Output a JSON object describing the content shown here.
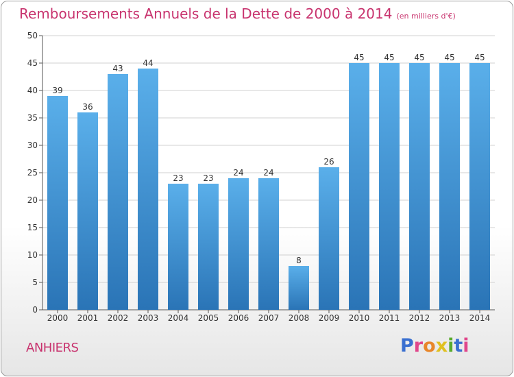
{
  "header": {
    "title": "Remboursements Annuels de la Dette de 2000 à 2014",
    "subtitle": "(en milliers d'€)"
  },
  "footer": {
    "commune": "ANHIERS",
    "logo_text": "Proxiti",
    "logo_colors": [
      "#3a6fd0",
      "#e0468b",
      "#e8862a",
      "#e0c020",
      "#5aab2e",
      "#3a6fd0",
      "#e0468b"
    ]
  },
  "chart_data": {
    "type": "bar",
    "title": "Remboursements Annuels de la Dette de 2000 à 2014",
    "subtitle": "(en milliers d'€)",
    "categories": [
      "2000",
      "2001",
      "2002",
      "2003",
      "2004",
      "2005",
      "2006",
      "2007",
      "2008",
      "2009",
      "2010",
      "2011",
      "2012",
      "2013",
      "2014"
    ],
    "values": [
      39,
      36,
      43,
      44,
      23,
      23,
      24,
      24,
      8,
      26,
      45,
      45,
      45,
      45,
      45
    ],
    "ylim": [
      0,
      50
    ],
    "yticks": [
      0,
      5,
      10,
      15,
      20,
      25,
      30,
      35,
      40,
      45,
      50
    ],
    "xlabel": "",
    "ylabel": "",
    "grid": true,
    "colors": {
      "bar_top": "#5aafea",
      "bar_bottom": "#2a74b6",
      "grid": "#d0d0d0",
      "axis": "#555555",
      "label": "#333333"
    }
  }
}
